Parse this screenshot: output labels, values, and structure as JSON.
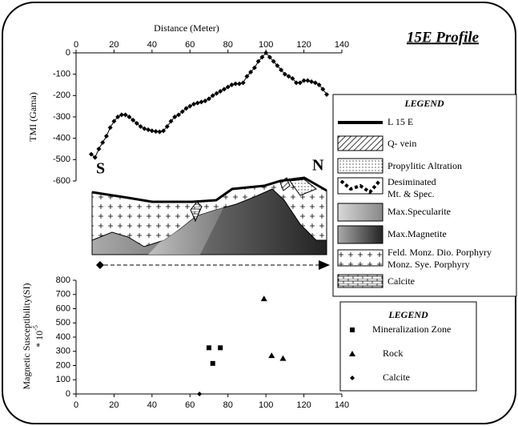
{
  "title": "15E Profile",
  "chart_data": [
    {
      "type": "line",
      "xlabel": "Distance (Meter)",
      "ylabel": "TMI (Gama)",
      "x_axis_position": "top",
      "marker": "diamond",
      "color": "#000000",
      "xlim": [
        0,
        140
      ],
      "xticks": [
        0,
        20,
        40,
        60,
        80,
        100,
        120,
        140
      ],
      "ylim": [
        -600,
        0
      ],
      "yticks": [
        0,
        -100,
        -200,
        -300,
        -400,
        -500,
        -600
      ],
      "x": [
        8,
        10,
        12,
        14,
        16,
        18,
        20,
        22,
        24,
        26,
        28,
        30,
        32,
        34,
        36,
        38,
        40,
        42,
        44,
        46,
        48,
        50,
        52,
        54,
        56,
        58,
        60,
        62,
        64,
        66,
        68,
        70,
        72,
        74,
        76,
        78,
        80,
        82,
        84,
        86,
        88,
        90,
        92,
        94,
        96,
        98,
        100,
        102,
        104,
        106,
        108,
        110,
        112,
        114,
        116,
        118,
        120,
        122,
        124,
        126,
        128,
        130,
        132
      ],
      "values": [
        -475,
        -490,
        -450,
        -420,
        -390,
        -350,
        -320,
        -300,
        -290,
        -290,
        -300,
        -315,
        -330,
        -345,
        -355,
        -360,
        -365,
        -368,
        -370,
        -365,
        -345,
        -320,
        -300,
        -290,
        -275,
        -260,
        -250,
        -240,
        -235,
        -230,
        -225,
        -215,
        -200,
        -190,
        -180,
        -170,
        -160,
        -150,
        -145,
        -145,
        -140,
        -110,
        -90,
        -70,
        -40,
        -20,
        0,
        -20,
        -40,
        -60,
        -80,
        -100,
        -110,
        -120,
        -140,
        -140,
        -130,
        -130,
        -135,
        -140,
        -150,
        -170,
        -195
      ]
    },
    {
      "type": "scatter",
      "ylabel": "Magnetic Susceptibility(SI)",
      "ylabel_note": "* 10",
      "ylabel_note_exponent": "-5",
      "xlim": [
        0,
        140
      ],
      "xticks": [
        0,
        20,
        40,
        60,
        80,
        100,
        120,
        140
      ],
      "ylim": [
        0,
        800
      ],
      "yticks": [
        0,
        100,
        200,
        300,
        400,
        500,
        600,
        700,
        800
      ],
      "legend_title": "LEGEND",
      "series": [
        {
          "name": "Mineralization Zone",
          "marker": "square",
          "color": "#000000",
          "x": [
            70,
            72,
            76
          ],
          "values": [
            325,
            215,
            325
          ]
        },
        {
          "name": "Rock",
          "marker": "triangle",
          "color": "#000000",
          "x": [
            99,
            103,
            109
          ],
          "values": [
            670,
            270,
            250
          ]
        },
        {
          "name": "Calcite",
          "marker": "diamond",
          "color": "#000000",
          "x": [
            65
          ],
          "values": [
            0
          ]
        }
      ]
    }
  ],
  "section": {
    "south": "S",
    "north": "N",
    "legend_title": "LEGEND",
    "legend": [
      "L 15 E",
      "Q- vein",
      "Propylitic Altration",
      "Desiminated",
      "Mt. & Spec.",
      "Max.Specularite",
      "Max.Magnetite",
      "Feld. Monz. Dio. Porphyry",
      "Monz. Sye. Porphyry",
      "Calcite"
    ]
  }
}
